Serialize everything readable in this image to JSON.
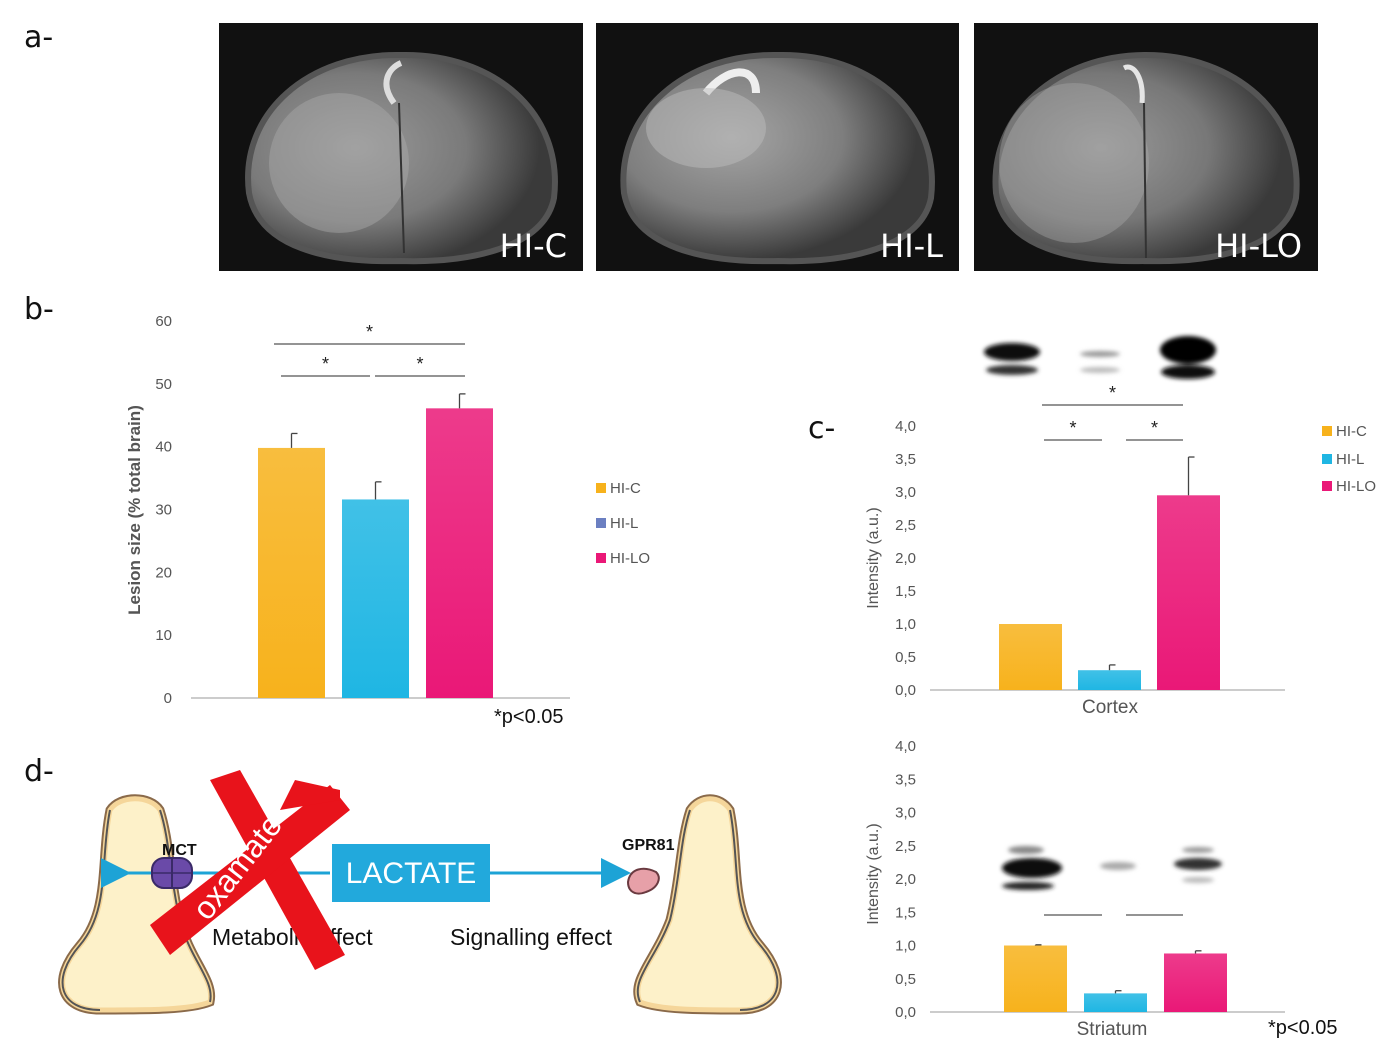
{
  "panels": {
    "a": "a-",
    "b": "b-",
    "c": "c-",
    "d": "d-"
  },
  "mri_images": [
    {
      "label": "HI-C"
    },
    {
      "label": "HI-L"
    },
    {
      "label": "HI-LO"
    }
  ],
  "colors": {
    "hic": "#f7b21c",
    "hil": "#1fb6e3",
    "hilo": "#ea1877",
    "hil_legend_b": "#6b7fc1",
    "lactate": "#22a9dc",
    "arrow": "#1da3d6",
    "cross": "#e8131b",
    "cell": "#fdf1c9"
  },
  "chart_data": [
    {
      "type": "bar",
      "id": "b",
      "categories": [
        "HI-C",
        "HI-L",
        "HI-LO"
      ],
      "values": [
        39.8,
        31.6,
        46.1
      ],
      "errors": [
        2.3,
        2.8,
        2.3
      ],
      "ylabel": "Lesion size (% total brain)",
      "ylim": [
        0,
        60
      ],
      "yticks": [
        "0",
        "10",
        "20",
        "30",
        "40",
        "50",
        "60"
      ],
      "legend": [
        "HI-C",
        "HI-L",
        "HI-LO"
      ],
      "significance": [
        "*",
        "*",
        "*"
      ],
      "note": "*p<0.05"
    },
    {
      "type": "bar",
      "id": "c-cortex",
      "categories": [
        "HI-C",
        "HI-L",
        "HI-LO"
      ],
      "values": [
        1.0,
        0.3,
        2.95
      ],
      "errors": [
        0.0,
        0.08,
        0.58
      ],
      "xlabel": "Cortex",
      "ylabel": "Intensity (a.u.)",
      "ylim": [
        0,
        4
      ],
      "yticks": [
        "0,0",
        "0,5",
        "1,0",
        "1,5",
        "2,0",
        "2,5",
        "3,0",
        "3,5",
        "4,0"
      ],
      "legend": [
        "HI-C",
        "HI-L",
        "HI-LO"
      ],
      "significance": [
        "*",
        "*",
        "*"
      ]
    },
    {
      "type": "bar",
      "id": "c-striatum",
      "categories": [
        "HI-C",
        "HI-L",
        "HI-LO"
      ],
      "values": [
        1.0,
        0.28,
        0.88
      ],
      "errors": [
        0.01,
        0.04,
        0.04
      ],
      "xlabel": "Striatum",
      "ylabel": "Intensity (a.u.)",
      "ylim": [
        0,
        4
      ],
      "yticks": [
        "0,0",
        "0,5",
        "1,0",
        "1,5",
        "2,0",
        "2,5",
        "3,0",
        "3,5",
        "4,0"
      ],
      "note": "*p<0.05"
    }
  ],
  "diagram": {
    "lactate": "LACTATE",
    "mct": "MCT",
    "gpr81": "GPR81",
    "oxamate": "oxamate",
    "metabolic": "Metabolic effect",
    "signalling": "Signalling effect"
  }
}
